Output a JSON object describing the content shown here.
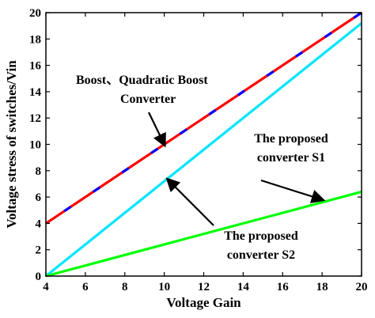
{
  "chart_data": {
    "type": "line",
    "xlabel": "Voltage Gain",
    "ylabel": "Voltage stress of switches/Vin",
    "xlim": [
      4,
      20
    ],
    "ylim": [
      0,
      20
    ],
    "x_ticks": [
      4,
      6,
      8,
      10,
      12,
      14,
      16,
      18,
      20
    ],
    "y_ticks": [
      0,
      2,
      4,
      6,
      8,
      10,
      12,
      14,
      16,
      18,
      20
    ],
    "grid": false,
    "series": [
      {
        "color": "#ff0000",
        "dash_color": "#0000ff",
        "x": [
          4,
          20
        ],
        "y": [
          4,
          20
        ]
      },
      {
        "color": "#00e5ff",
        "x": [
          4,
          20
        ],
        "y": [
          0,
          19.2
        ]
      },
      {
        "color": "#00ff00",
        "x": [
          4,
          20
        ],
        "y": [
          0,
          6.4
        ]
      }
    ],
    "annotations": [
      {
        "lines": [
          "Boost、Quadratic Boost",
          "Converter"
        ],
        "arrow_to": [
          10,
          10
        ]
      },
      {
        "lines": [
          "The proposed",
          "converter S1"
        ],
        "arrow_to": [
          18,
          5.8
        ]
      },
      {
        "lines": [
          "The proposed",
          "converter S2"
        ],
        "arrow_to": [
          10.2,
          7.3
        ]
      }
    ]
  }
}
